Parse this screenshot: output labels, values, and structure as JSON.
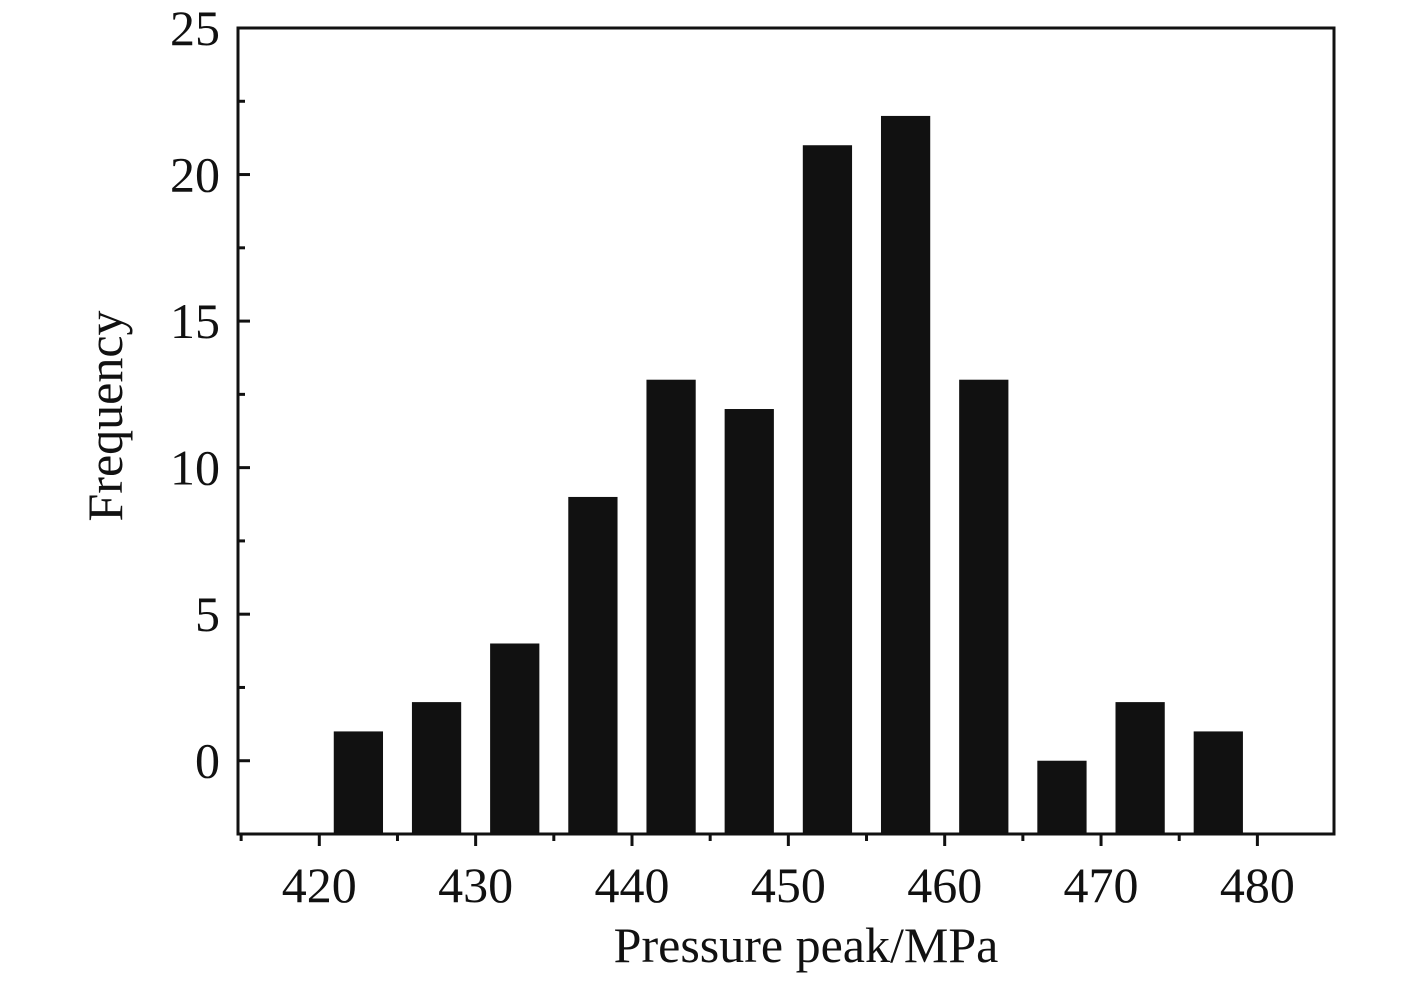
{
  "chart_data": {
    "type": "bar",
    "title": "",
    "xlabel": "Pressure peak/MPa",
    "ylabel": "Frequency",
    "x_bin_centers": [
      422.5,
      427.5,
      432.5,
      437.5,
      442.5,
      447.5,
      452.5,
      457.5,
      462.5,
      467.5,
      472.5,
      477.5
    ],
    "values": [
      1,
      2,
      4,
      9,
      13,
      12,
      21,
      22,
      13,
      0,
      2,
      1
    ],
    "bin_width": 5,
    "bar_width_fraction": 0.63,
    "xlim": [
      414.8,
      484.9
    ],
    "ylim": [
      -2.5,
      25
    ],
    "x_ticks": [
      420,
      430,
      440,
      450,
      460,
      470,
      480
    ],
    "x_tick_labels": [
      "420",
      "430",
      "440",
      "450",
      "460",
      "470",
      "480"
    ],
    "y_ticks": [
      0,
      5,
      10,
      15,
      20,
      25
    ],
    "y_tick_labels": [
      "0",
      "5",
      "10",
      "15",
      "20",
      "25"
    ],
    "grid": false,
    "legend": "none",
    "bar_color": "#111111",
    "axis_color": "#111111"
  }
}
